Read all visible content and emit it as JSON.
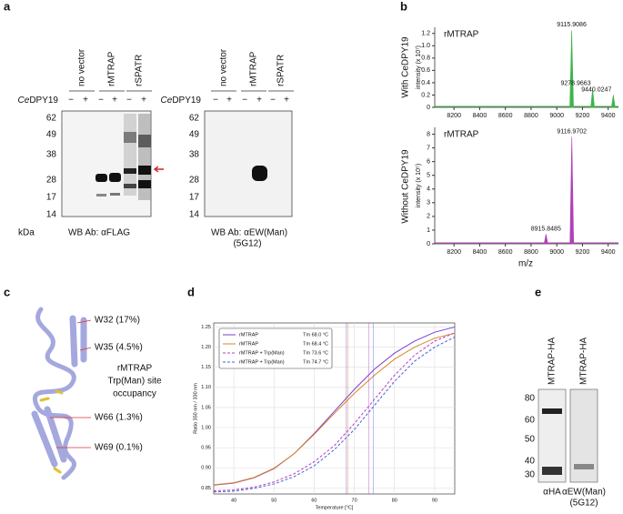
{
  "panels": {
    "a": {
      "label": "a",
      "left": {
        "lanes": [
          "no vector",
          "rMTRAP",
          "rSPATR"
        ],
        "gene_italic": "Ce",
        "gene_rest": "DPY19",
        "signs": [
          "−",
          "+",
          "−",
          "+",
          "−",
          "+"
        ],
        "markers": [
          62,
          49,
          38,
          28,
          17,
          14
        ],
        "unit": "kDa",
        "antibody": "WB Ab:  αFLAG"
      },
      "right": {
        "lanes": [
          "no vector",
          "rMTRAP",
          "rSPATR"
        ],
        "gene_italic": "Ce",
        "gene_rest": "DPY19",
        "signs": [
          "−",
          "+",
          "−",
          "+",
          "−",
          "+"
        ],
        "markers": [
          62,
          49,
          38,
          28,
          17,
          14
        ],
        "antibody": "WB Ab:  αEW(Man)",
        "clone": "(5G12)"
      }
    },
    "b": {
      "label": "b",
      "rows": [
        "With CeDPY19",
        "Without CeDPY19"
      ],
      "xlabel": "m/z"
    },
    "c": {
      "label": "c",
      "sites": [
        "W32 (17%)",
        "W35 (4.5%)",
        "W66 (1.3%)",
        "W69 (0.1%)"
      ],
      "caption": [
        "rMTRAP",
        "Trp(Man) site",
        "occupancy"
      ]
    },
    "d": {
      "label": "d"
    },
    "e": {
      "label": "e",
      "lanes": [
        "MTRAP-HA",
        "MTRAP-HA"
      ],
      "markers": [
        80,
        60,
        50,
        40,
        30
      ],
      "antibodies": [
        "αHA",
        "αEW(Man)"
      ],
      "clone": "(5G12)"
    }
  },
  "chart_data": [
    {
      "type": "spectrum",
      "title": "rMTRAP",
      "ylabel": "intensity (x 10⁷)",
      "x": [
        9115.9086,
        9278.9663,
        9440.0247
      ],
      "values": [
        1.25,
        0.3,
        0.2
      ],
      "color": "#3cb44b",
      "xlim": [
        8050,
        9480
      ],
      "xticks": [
        8200,
        8400,
        8600,
        8800,
        9000,
        9200,
        9400
      ],
      "ylim": [
        0,
        1.3
      ],
      "yticks": [
        0,
        0.2,
        0.4,
        0.6,
        0.8,
        {
          "value": 1.0,
          "label": "1.0"
        },
        1.2
      ]
    },
    {
      "type": "spectrum",
      "title": "rMTRAP",
      "ylabel": "intensity (x 10⁵)",
      "x": [
        8915.8485,
        9116.9702
      ],
      "values": [
        0.7,
        7.8
      ],
      "color": "#b040b8",
      "xlim": [
        8050,
        9480
      ],
      "xticks": [
        8200,
        8400,
        8600,
        8800,
        9000,
        9200,
        9400
      ],
      "ylim": [
        0,
        8.5
      ],
      "yticks": [
        0,
        1,
        2,
        3,
        4,
        5,
        6,
        7,
        8
      ]
    },
    {
      "type": "line",
      "ylabel": "Ratio 350 nm / 330 nm",
      "xlabel": "Temperature [°C]",
      "x": [
        35,
        40,
        45,
        50,
        55,
        60,
        65,
        70,
        75,
        80,
        85,
        90,
        95
      ],
      "series": [
        {
          "name": "rMTRAP",
          "color": "#7b3fd0",
          "linestyle": "solid",
          "tm": 68.0,
          "tm_label": "Tm 68.0 °C",
          "values": [
            0.857,
            0.862,
            0.875,
            0.898,
            0.935,
            0.985,
            1.04,
            1.095,
            1.145,
            1.185,
            1.215,
            1.237,
            1.25
          ]
        },
        {
          "name": "rMTRAP",
          "color": "#d9862b",
          "linestyle": "solid",
          "tm": 68.4,
          "tm_label": "Tm 68.4 °C",
          "values": [
            0.858,
            0.863,
            0.876,
            0.899,
            0.935,
            0.983,
            1.035,
            1.085,
            1.13,
            1.17,
            1.2,
            1.222,
            1.235
          ]
        },
        {
          "name": "rMTRAP + Trp(Man)",
          "color": "#b73fc0",
          "linestyle": "dashed",
          "tm": 73.6,
          "tm_label": "Tm 73.6 °C",
          "values": [
            0.843,
            0.845,
            0.852,
            0.865,
            0.885,
            0.915,
            0.955,
            1.01,
            1.07,
            1.13,
            1.18,
            1.215,
            1.235
          ]
        },
        {
          "name": "rMTRAP + Trp(Man)",
          "color": "#4a5fd8",
          "linestyle": "dashed",
          "tm": 74.7,
          "tm_label": "Tm 74.7 °C",
          "values": [
            0.84,
            0.842,
            0.849,
            0.86,
            0.878,
            0.905,
            0.945,
            0.995,
            1.055,
            1.115,
            1.165,
            1.2,
            1.225
          ]
        }
      ],
      "xlim": [
        35,
        95
      ],
      "xticks": [
        40,
        50,
        60,
        70,
        80,
        90
      ],
      "ylim": [
        0.835,
        1.26
      ],
      "yticks": [
        0.85,
        {
          "value": 0.9,
          "label": "0.90"
        },
        0.95,
        {
          "value": 1.0,
          "label": "1.00"
        },
        1.05,
        {
          "value": 1.1,
          "label": "1.10"
        },
        1.15,
        {
          "value": 1.2,
          "label": "1.20"
        },
        1.25
      ],
      "grid": true,
      "legend": "upper left"
    }
  ]
}
